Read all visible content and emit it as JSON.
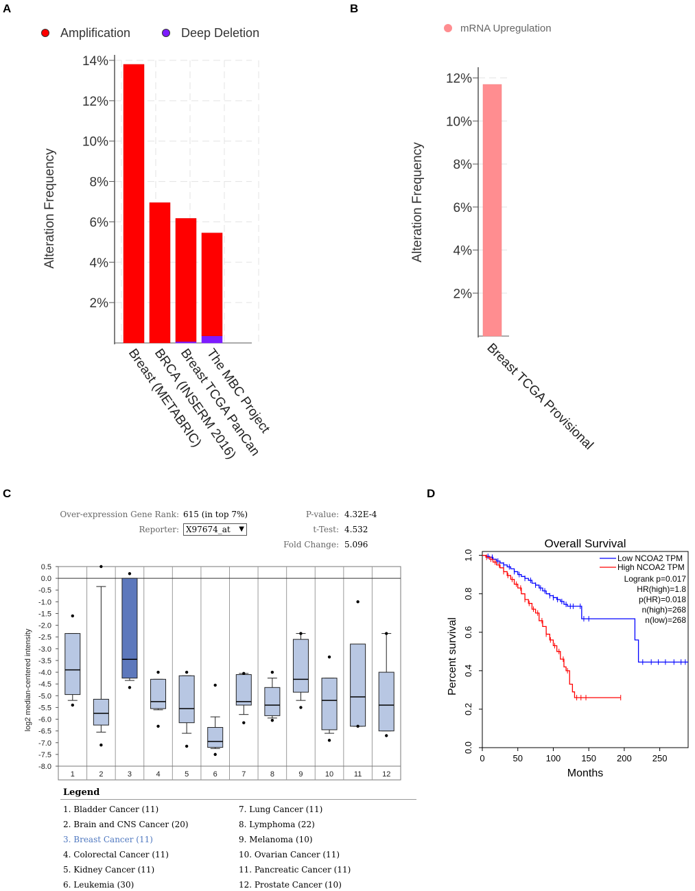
{
  "panels": {
    "a": "A",
    "b": "B",
    "c": "C",
    "d": "D"
  },
  "chart_data": [
    {
      "id": "A",
      "type": "bar",
      "stacked": true,
      "ylabel": "Alteration Frequency",
      "ylim": [
        0,
        14
      ],
      "yticks": [
        2,
        4,
        6,
        8,
        10,
        12,
        14
      ],
      "ytick_labels": [
        "2%",
        "4%",
        "6%",
        "8%",
        "10%",
        "12%",
        "14%"
      ],
      "categories": [
        "Breast (METABRIC)",
        "BRCA (INSERM 2016)",
        "Breast TCGA PanCan",
        "The MBC Project"
      ],
      "legend": [
        {
          "label": "Amplification",
          "color": "#ff0000"
        },
        {
          "label": "Deep Deletion",
          "color": "#7d1bff"
        }
      ],
      "series": [
        {
          "name": "Deep Deletion",
          "color": "#7d1bff",
          "values": [
            0,
            0,
            0.07,
            0.35
          ]
        },
        {
          "name": "Amplification",
          "color": "#ff0000",
          "values": [
            13.8,
            6.95,
            6.1,
            5.1
          ]
        }
      ]
    },
    {
      "id": "B",
      "type": "bar",
      "ylabel": "Alteration Frequency",
      "ylim": [
        0,
        12.5
      ],
      "yticks": [
        2,
        4,
        6,
        8,
        10,
        12
      ],
      "ytick_labels": [
        "2%",
        "4%",
        "6%",
        "8%",
        "10%",
        "12%"
      ],
      "categories": [
        "Breast TCGA Provisional"
      ],
      "legend": [
        {
          "label": "mRNA Upregulation",
          "color": "#ff8d90"
        }
      ],
      "series": [
        {
          "name": "mRNA Upregulation",
          "color": "#ff8d90",
          "values": [
            11.7
          ]
        }
      ]
    },
    {
      "id": "C",
      "type": "box",
      "ylabel": "log2 median-centered intensity",
      "ylim": [
        -8.0,
        0.5
      ],
      "ytick_labels": [
        "0.5",
        "0.0",
        "-0.5",
        "-1.0",
        "-1.5",
        "-2.0",
        "-2.5",
        "-3.0",
        "-3.5",
        "-4.0",
        "-4.5",
        "-5.0",
        "-5.5",
        "-6.0",
        "-6.5",
        "-7.0",
        "-7.5",
        "-8.0"
      ],
      "highlight_index": 3,
      "highlight_color": "#5d78bc",
      "box_color": "#b8c7e3",
      "boxes": [
        {
          "label": "1",
          "whisker_high": -2.35,
          "q3": -2.35,
          "median": -3.9,
          "q1": -4.95,
          "whisker_low": -5.2,
          "outliers": [
            -1.6,
            -5.4
          ]
        },
        {
          "label": "2",
          "whisker_high": -0.35,
          "q3": -5.15,
          "median": -5.75,
          "q1": -6.25,
          "whisker_low": -6.55,
          "outliers": [
            0.5,
            -7.1
          ]
        },
        {
          "label": "3",
          "whisker_high": 0.0,
          "q3": 0.0,
          "median": -3.45,
          "q1": -4.25,
          "whisker_low": -4.35,
          "outliers": [
            0.2,
            -4.65
          ]
        },
        {
          "label": "4",
          "whisker_high": -4.3,
          "q3": -4.3,
          "median": -5.25,
          "q1": -5.55,
          "whisker_low": -5.6,
          "outliers": [
            -4.0,
            -6.3
          ]
        },
        {
          "label": "5",
          "whisker_high": -4.15,
          "q3": -4.15,
          "median": -5.55,
          "q1": -6.15,
          "whisker_low": -6.6,
          "outliers": [
            -4.0,
            -7.15
          ]
        },
        {
          "label": "6",
          "whisker_high": -5.9,
          "q3": -6.35,
          "median": -6.95,
          "q1": -7.2,
          "whisker_low": -7.25,
          "outliers": [
            -4.55,
            -7.5
          ]
        },
        {
          "label": "7",
          "whisker_high": -4.05,
          "q3": -4.1,
          "median": -5.25,
          "q1": -5.4,
          "whisker_low": -5.8,
          "outliers": [
            -4.05,
            -6.15
          ]
        },
        {
          "label": "8",
          "whisker_high": -4.25,
          "q3": -4.65,
          "median": -5.4,
          "q1": -5.85,
          "whisker_low": -5.95,
          "outliers": [
            -4.0,
            -6.05
          ]
        },
        {
          "label": "9",
          "whisker_high": -2.35,
          "q3": -2.6,
          "median": -4.3,
          "q1": -4.85,
          "whisker_low": -5.2,
          "outliers": [
            -2.35,
            -5.5
          ]
        },
        {
          "label": "10",
          "whisker_high": -4.25,
          "q3": -4.25,
          "median": -5.2,
          "q1": -6.45,
          "whisker_low": -6.6,
          "outliers": [
            -3.35,
            -6.9
          ]
        },
        {
          "label": "11",
          "whisker_high": -2.8,
          "q3": -2.8,
          "median": -5.05,
          "q1": -6.3,
          "whisker_low": -6.3,
          "outliers": [
            -1.0,
            -6.3
          ]
        },
        {
          "label": "12",
          "whisker_high": -2.35,
          "q3": -4.0,
          "median": -5.4,
          "q1": -6.5,
          "whisker_low": -6.5,
          "outliers": [
            -2.35,
            -6.7
          ]
        }
      ]
    },
    {
      "id": "D",
      "type": "line",
      "subtype": "kaplan-meier",
      "title": "Overall Survival",
      "xlabel": "Months",
      "ylabel": "Percent survival",
      "xlim": [
        0,
        290
      ],
      "ylim": [
        0,
        1.02
      ],
      "xticks": [
        "0",
        "50",
        "100",
        "150",
        "200",
        "250"
      ],
      "yticks": [
        "0.0",
        "0.2",
        "0.4",
        "0.6",
        "0.8",
        "1.0"
      ],
      "legend": [
        {
          "label": "Low NCOA2 TPM",
          "color": "#0000ff"
        },
        {
          "label": "High NCOA2 TPM",
          "color": "#ff0000"
        }
      ],
      "stats": [
        "Logrank p=0.017",
        "HR(high)=1.8",
        "p(HR)=0.018",
        "n(high)=268",
        "n(low)=268"
      ],
      "series": [
        {
          "name": "Low NCOA2 TPM",
          "color": "#0000ff",
          "x": [
            0,
            5,
            10,
            15,
            20,
            25,
            30,
            35,
            40,
            45,
            50,
            55,
            60,
            65,
            70,
            75,
            80,
            85,
            90,
            95,
            100,
            105,
            110,
            115,
            120,
            132,
            140,
            150,
            160,
            200,
            215,
            220,
            240,
            260,
            290
          ],
          "y": [
            1.0,
            0.995,
            0.99,
            0.98,
            0.97,
            0.96,
            0.95,
            0.94,
            0.93,
            0.915,
            0.9,
            0.89,
            0.88,
            0.87,
            0.855,
            0.845,
            0.83,
            0.815,
            0.8,
            0.79,
            0.78,
            0.77,
            0.76,
            0.745,
            0.735,
            0.735,
            0.67,
            0.67,
            0.67,
            0.67,
            0.56,
            0.445,
            0.445,
            0.445,
            0.445
          ],
          "censor_x": [
            8,
            14,
            22,
            30,
            38,
            45,
            52,
            60,
            68,
            75,
            82,
            88,
            95,
            100,
            106,
            112,
            118,
            124,
            128,
            138,
            143,
            150,
            226,
            238,
            248,
            258,
            270,
            280,
            286
          ]
        },
        {
          "name": "High NCOA2 TPM",
          "color": "#ff0000",
          "x": [
            0,
            5,
            10,
            15,
            20,
            25,
            30,
            35,
            40,
            45,
            50,
            55,
            60,
            65,
            70,
            75,
            80,
            85,
            90,
            95,
            100,
            105,
            110,
            115,
            118,
            123,
            127,
            130,
            150,
            195
          ],
          "y": [
            1.0,
            0.99,
            0.98,
            0.965,
            0.95,
            0.935,
            0.915,
            0.895,
            0.875,
            0.85,
            0.83,
            0.8,
            0.77,
            0.75,
            0.72,
            0.7,
            0.66,
            0.63,
            0.59,
            0.56,
            0.53,
            0.5,
            0.46,
            0.42,
            0.4,
            0.33,
            0.29,
            0.26,
            0.26,
            0.26
          ],
          "censor_x": [
            6,
            12,
            18,
            24,
            30,
            36,
            42,
            48,
            54,
            60,
            66,
            72,
            78,
            84,
            90,
            96,
            102,
            108,
            114,
            120,
            133,
            139,
            146,
            195
          ]
        }
      ]
    }
  ],
  "oncomine": {
    "rank_label": "Over-expression Gene Rank:",
    "rank_value": "615 (in top 7%)",
    "reporter_label": "Reporter:",
    "reporter_value": "X97674_at",
    "pvalue_label": "P-value:",
    "pvalue_value": "4.32E-4",
    "ttest_label": "t-Test:",
    "ttest_value": "4.532",
    "fold_label": "Fold Change:",
    "fold_value": "5.096",
    "legend_title": "Legend",
    "legend_items": [
      "1. Bladder Cancer (11)",
      "2. Brain and CNS Cancer (20)",
      "3. Breast Cancer (11)",
      "4. Colorectal Cancer (11)",
      "5. Kidney Cancer (11)",
      "6. Leukemia (30)",
      "7. Lung Cancer (11)",
      "8. Lymphoma (22)",
      "9. Melanoma (10)",
      "10. Ovarian Cancer (11)",
      "11. Pancreatic Cancer (11)",
      "12. Prostate Cancer (10)"
    ]
  }
}
